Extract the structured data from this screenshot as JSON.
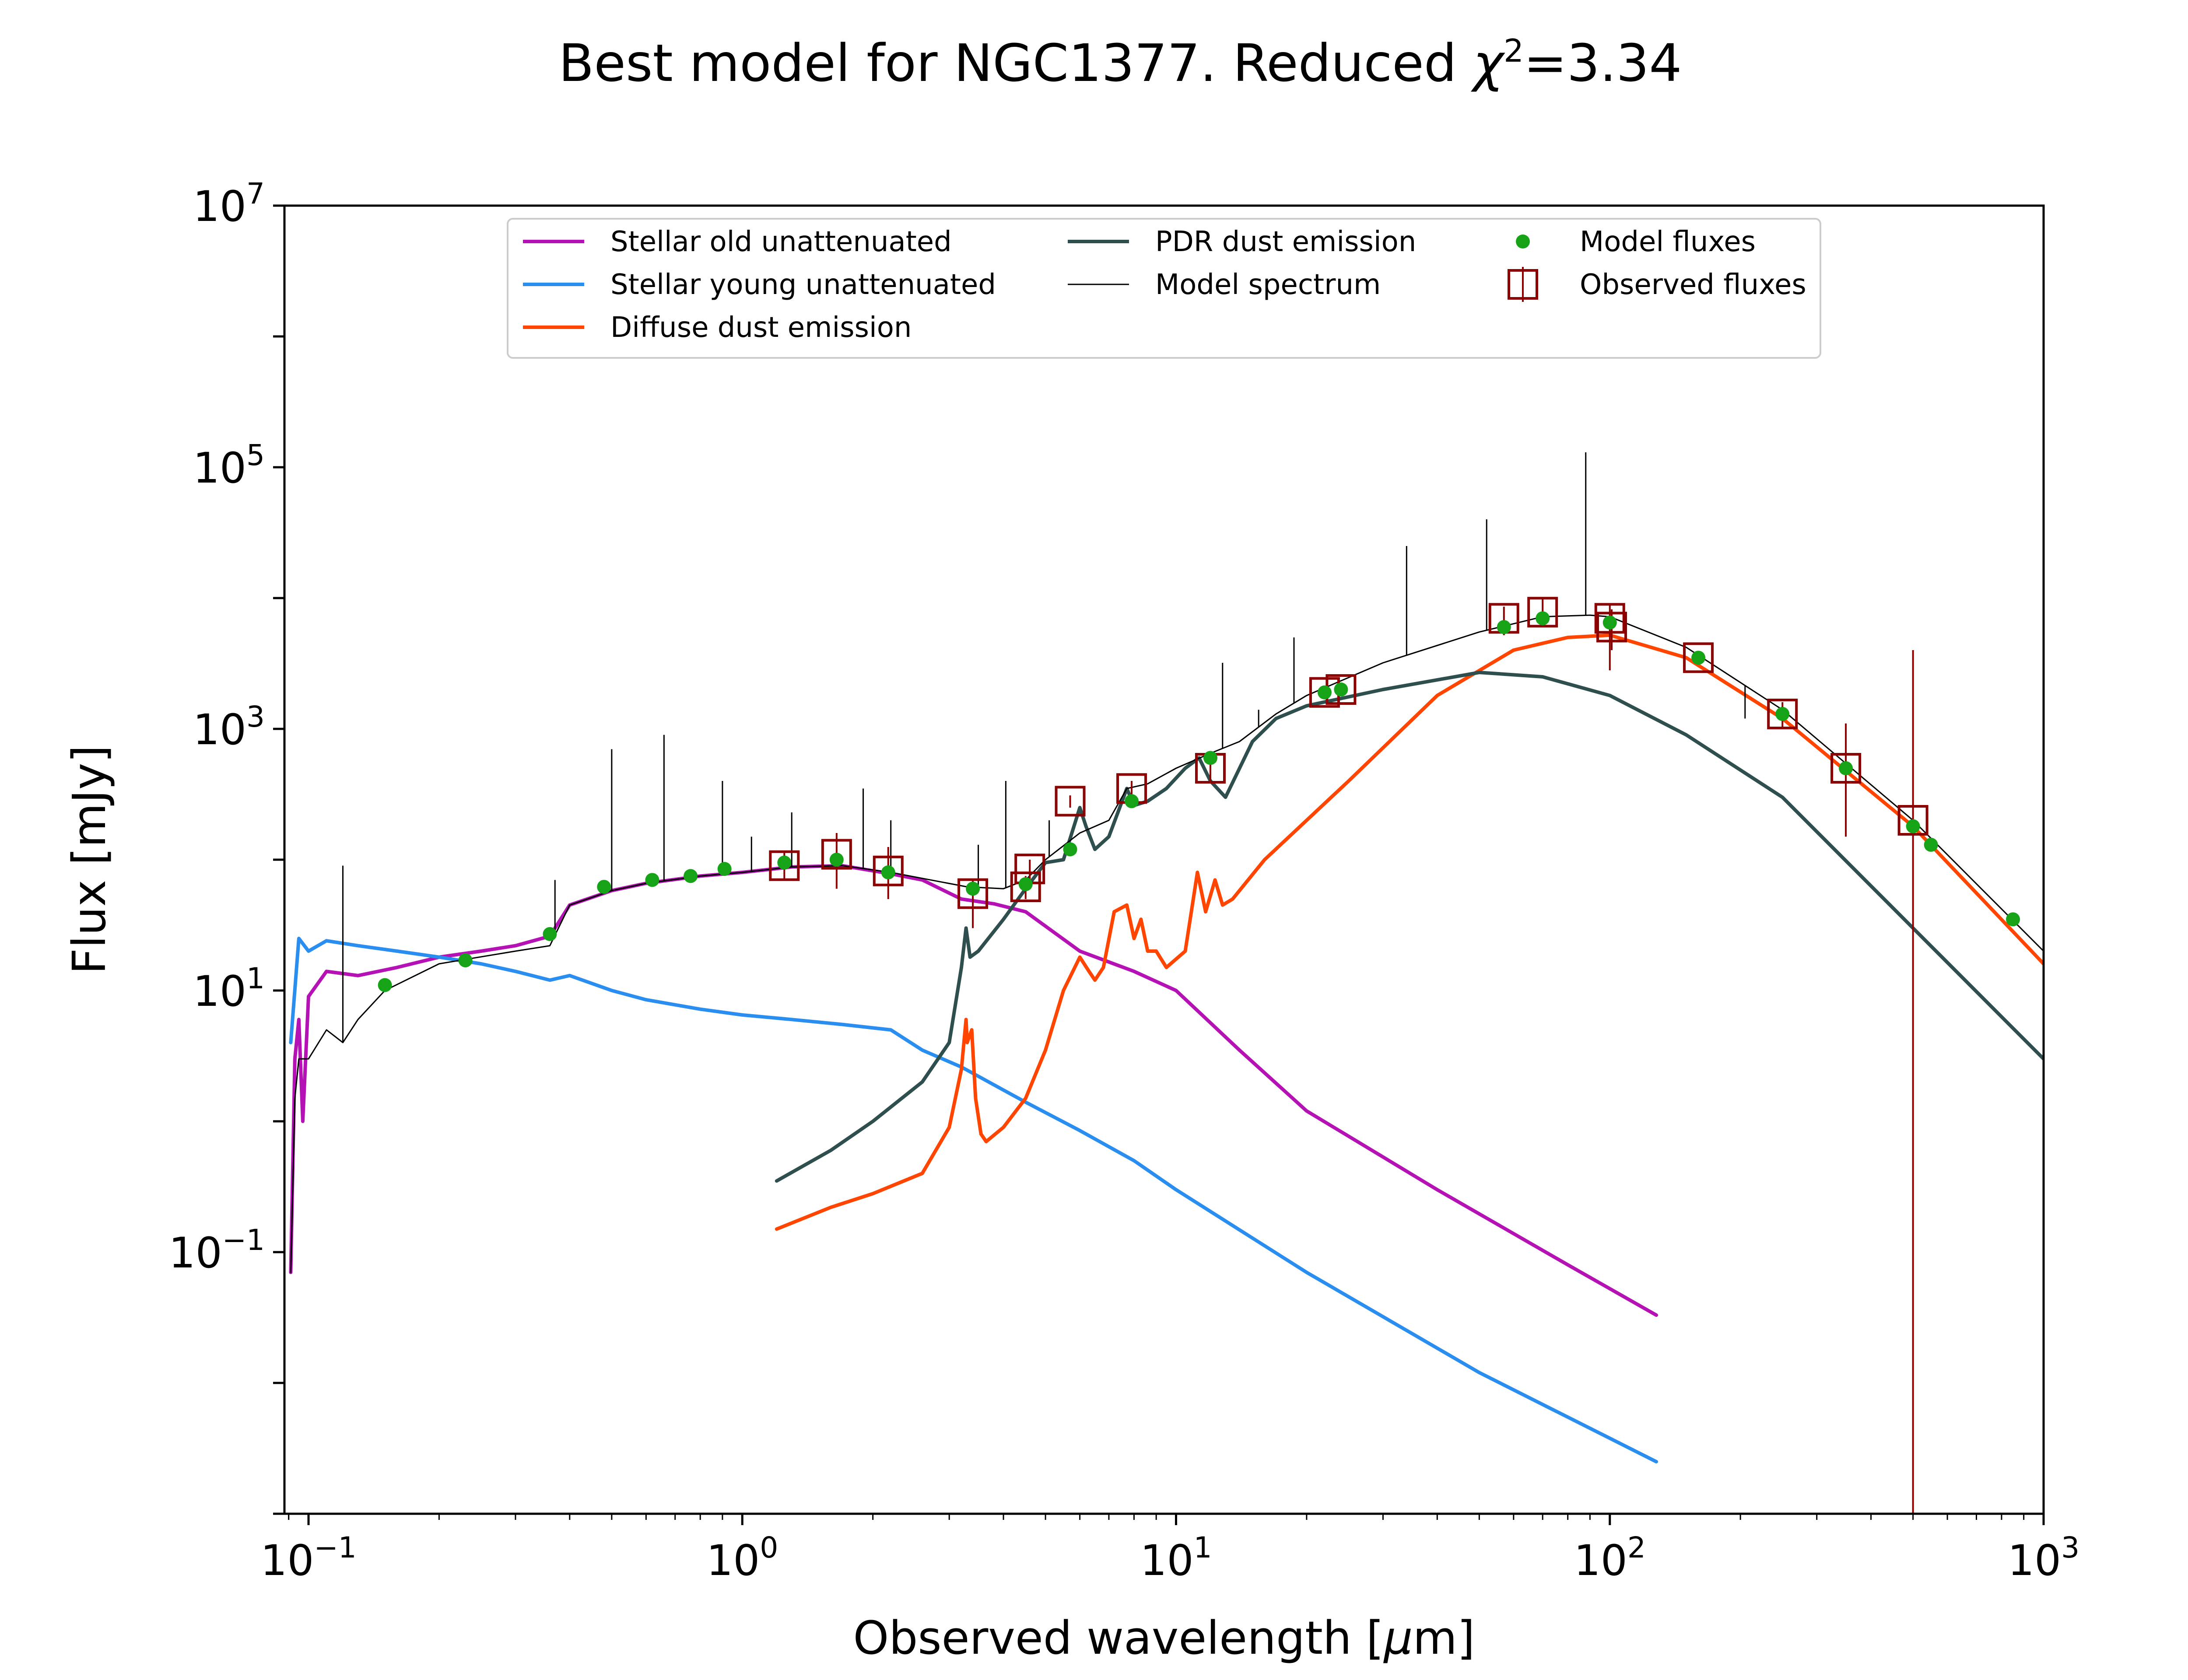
{
  "chart_data": {
    "type": "line",
    "title": "Best model for NGC1377. Reduced χ²=3.34",
    "title_parts": {
      "prefix": "Best model for NGC1377. Reduced ",
      "chi": "χ",
      "sup": "2",
      "suffix": "=3.34"
    },
    "xlabel": "Observed wavelength [μm]",
    "xlabel_parts": {
      "prefix": "Observed wavelength [",
      "mu": "μ",
      "suffix": "m]"
    },
    "ylabel": "Flux [mJy]",
    "xscale": "log",
    "yscale": "log",
    "xlim": [
      0.088,
      1000
    ],
    "ylim": [
      0.001,
      10000000
    ],
    "x_ticks": [
      {
        "value": 0.1,
        "base": "10",
        "exp": "−1"
      },
      {
        "value": 1,
        "base": "10",
        "exp": "0"
      },
      {
        "value": 10,
        "base": "10",
        "exp": "1"
      },
      {
        "value": 100,
        "base": "10",
        "exp": "2"
      },
      {
        "value": 1000,
        "base": "10",
        "exp": "3"
      }
    ],
    "y_ticks": [
      {
        "value": 0.1,
        "base": "10",
        "exp": "−1"
      },
      {
        "value": 10,
        "base": "10",
        "exp": "1"
      },
      {
        "value": 1000,
        "base": "10",
        "exp": "3"
      },
      {
        "value": 100000,
        "base": "10",
        "exp": "5"
      },
      {
        "value": 10000000,
        "base": "10",
        "exp": "7"
      }
    ],
    "legend_position": "top",
    "legend": [
      {
        "label": "Stellar old unattenuated",
        "kind": "line",
        "color": "#b412b4",
        "width": 8
      },
      {
        "label": "Stellar young unattenuated",
        "kind": "line",
        "color": "#2a8ef0",
        "width": 8
      },
      {
        "label": "Diffuse dust emission",
        "kind": "line",
        "color": "#ff4500",
        "width": 8
      },
      {
        "label": "PDR dust emission",
        "kind": "line",
        "color": "#2f4f4f",
        "width": 8
      },
      {
        "label": "Model spectrum",
        "kind": "line",
        "color": "#000000",
        "width": 3
      },
      {
        "label": "Model fluxes",
        "kind": "dot",
        "color": "#17a317"
      },
      {
        "label": "Observed fluxes",
        "kind": "square",
        "color": "#8b0000"
      }
    ],
    "series": [
      {
        "name": "Stellar old unattenuated",
        "color": "#b412b4",
        "x": [
          0.091,
          0.093,
          0.095,
          0.097,
          0.1,
          0.11,
          0.13,
          0.16,
          0.2,
          0.25,
          0.3,
          0.36,
          0.4,
          0.5,
          0.6,
          0.8,
          1.0,
          1.3,
          1.7,
          2.2,
          2.6,
          3.2,
          3.8,
          4.5,
          6.0,
          8.0,
          10,
          14,
          20,
          40,
          80,
          128
        ],
        "y": [
          0.07,
          3,
          6,
          1,
          9,
          14,
          13,
          15,
          18,
          20,
          22,
          26,
          45,
          58,
          66,
          75,
          80,
          88,
          90,
          78,
          70,
          50,
          46,
          40,
          20,
          14,
          10,
          3.5,
          1.2,
          0.3,
          0.08,
          0.033
        ]
      },
      {
        "name": "Stellar young unattenuated",
        "color": "#2a8ef0",
        "x": [
          0.091,
          0.095,
          0.1,
          0.11,
          0.13,
          0.16,
          0.2,
          0.25,
          0.3,
          0.36,
          0.4,
          0.5,
          0.6,
          0.8,
          1.0,
          1.3,
          1.7,
          2.2,
          2.6,
          3.2,
          4.5,
          6.0,
          8.0,
          10,
          20,
          50,
          128
        ],
        "y": [
          4,
          25,
          20,
          24,
          22,
          20,
          18,
          16,
          14,
          12,
          13,
          10,
          8.5,
          7.2,
          6.5,
          6.0,
          5.5,
          5.0,
          3.5,
          2.6,
          1.4,
          0.85,
          0.5,
          0.3,
          0.07,
          0.012,
          0.0025
        ]
      },
      {
        "name": "Diffuse dust emission",
        "color": "#ff4500",
        "x": [
          1.2,
          1.6,
          2.0,
          2.6,
          3.0,
          3.2,
          3.28,
          3.3,
          3.38,
          3.45,
          3.55,
          3.65,
          4.0,
          4.5,
          5.0,
          5.5,
          6.0,
          6.3,
          6.5,
          6.8,
          7.2,
          7.7,
          8.0,
          8.3,
          8.6,
          9.0,
          9.5,
          10.5,
          11.2,
          11.7,
          12.3,
          12.8,
          13.5,
          16,
          25,
          40,
          60,
          80,
          100,
          150,
          250,
          500,
          1000
        ],
        "y": [
          0.15,
          0.22,
          0.28,
          0.4,
          0.9,
          2.5,
          6.0,
          4.0,
          5.0,
          1.5,
          0.8,
          0.7,
          0.9,
          1.5,
          3.5,
          10,
          18,
          14,
          12,
          15,
          40,
          45,
          25,
          35,
          20,
          20,
          15,
          20,
          80,
          40,
          70,
          45,
          50,
          100,
          400,
          1800,
          4000,
          5000,
          5200,
          3500,
          1200,
          180,
          16
        ]
      },
      {
        "name": "PDR dust emission",
        "color": "#2f4f4f",
        "x": [
          1.2,
          1.6,
          2.0,
          2.6,
          3.0,
          3.2,
          3.28,
          3.35,
          3.5,
          4.0,
          4.5,
          5.0,
          5.5,
          6.0,
          6.2,
          6.5,
          7.0,
          7.7,
          8.0,
          8.6,
          9.5,
          10.5,
          11.3,
          12.0,
          13.0,
          15,
          17,
          20,
          30,
          50,
          70,
          100,
          150,
          250,
          500,
          1000
        ],
        "y": [
          0.35,
          0.6,
          1.0,
          2.0,
          4.0,
          15,
          30,
          18,
          20,
          35,
          60,
          95,
          100,
          250,
          180,
          120,
          150,
          350,
          260,
          280,
          350,
          500,
          600,
          400,
          300,
          800,
          1200,
          1500,
          2000,
          2700,
          2500,
          1800,
          900,
          300,
          30,
          3
        ]
      },
      {
        "name": "Model spectrum",
        "color": "#000000",
        "x": [
          0.091,
          0.093,
          0.095,
          0.1,
          0.11,
          0.12,
          0.13,
          0.15,
          0.2,
          0.3,
          0.36,
          0.4,
          0.5,
          0.6,
          0.8,
          1.0,
          1.3,
          1.7,
          2.2,
          2.6,
          3.3,
          4.0,
          4.5,
          5.0,
          6.0,
          7.0,
          7.7,
          8.6,
          10,
          12,
          14,
          17,
          20,
          30,
          50,
          70,
          90,
          100,
          150,
          250,
          500,
          1000
        ],
        "y": [
          0.07,
          1.5,
          3,
          3,
          5,
          4,
          6,
          10,
          16,
          20,
          22,
          45,
          58,
          66,
          75,
          80,
          88,
          90,
          80,
          72,
          62,
          60,
          70,
          100,
          160,
          200,
          350,
          380,
          500,
          650,
          800,
          1300,
          1800,
          3200,
          5500,
          7200,
          7400,
          7200,
          4200,
          1400,
          200,
          20
        ]
      }
    ],
    "model_spectrum_lines": [
      {
        "x": 0.12,
        "y": 90
      },
      {
        "x": 0.37,
        "y": 70
      },
      {
        "x": 0.5,
        "y": 700
      },
      {
        "x": 0.66,
        "y": 900
      },
      {
        "x": 0.9,
        "y": 400
      },
      {
        "x": 1.05,
        "y": 150
      },
      {
        "x": 1.3,
        "y": 230
      },
      {
        "x": 1.9,
        "y": 350
      },
      {
        "x": 2.2,
        "y": 200
      },
      {
        "x": 3.5,
        "y": 130
      },
      {
        "x": 4.05,
        "y": 400
      },
      {
        "x": 5.1,
        "y": 200
      },
      {
        "x": 12.8,
        "y": 3200
      },
      {
        "x": 15.5,
        "y": 1400
      },
      {
        "x": 18.7,
        "y": 5000
      },
      {
        "x": 34,
        "y": 25000
      },
      {
        "x": 52,
        "y": 40000
      },
      {
        "x": 88,
        "y": 130000
      },
      {
        "x": 205,
        "y": 1200
      }
    ],
    "model_fluxes": {
      "x": [
        0.15,
        0.23,
        0.36,
        0.48,
        0.62,
        0.76,
        0.91,
        1.25,
        1.65,
        2.17,
        3.4,
        4.5,
        5.7,
        7.9,
        12,
        22,
        24,
        57,
        70,
        100,
        160,
        250,
        350,
        500,
        550,
        850
      ],
      "y": [
        11,
        17,
        27,
        62,
        70,
        75,
        85,
        95,
        100,
        80,
        60,
        65,
        120,
        280,
        600,
        1900,
        2000,
        6000,
        7000,
        6500,
        3500,
        1300,
        500,
        180,
        130,
        35
      ]
    },
    "observed_fluxes": {
      "x": [
        1.25,
        1.65,
        2.17,
        3.4,
        4.5,
        4.6,
        5.7,
        7.9,
        12,
        22,
        24,
        57,
        70,
        100,
        101,
        160,
        250,
        350,
        500
      ],
      "y": [
        90,
        110,
        82,
        55,
        62,
        85,
        280,
        350,
        500,
        1900,
        2000,
        7000,
        7800,
        7000,
        6000,
        3500,
        1300,
        500,
        200
      ],
      "err_low": [
        70,
        60,
        50,
        30,
        50,
        70,
        250,
        300,
        400,
        1700,
        1800,
        5200,
        6000,
        2800,
        4000,
        3200,
        1000,
        150,
        0.001
      ],
      "err_high": [
        115,
        160,
        125,
        70,
        75,
        100,
        310,
        400,
        580,
        2100,
        2200,
        8600,
        9800,
        9000,
        8200,
        3800,
        1600,
        1100,
        4000
      ]
    }
  }
}
